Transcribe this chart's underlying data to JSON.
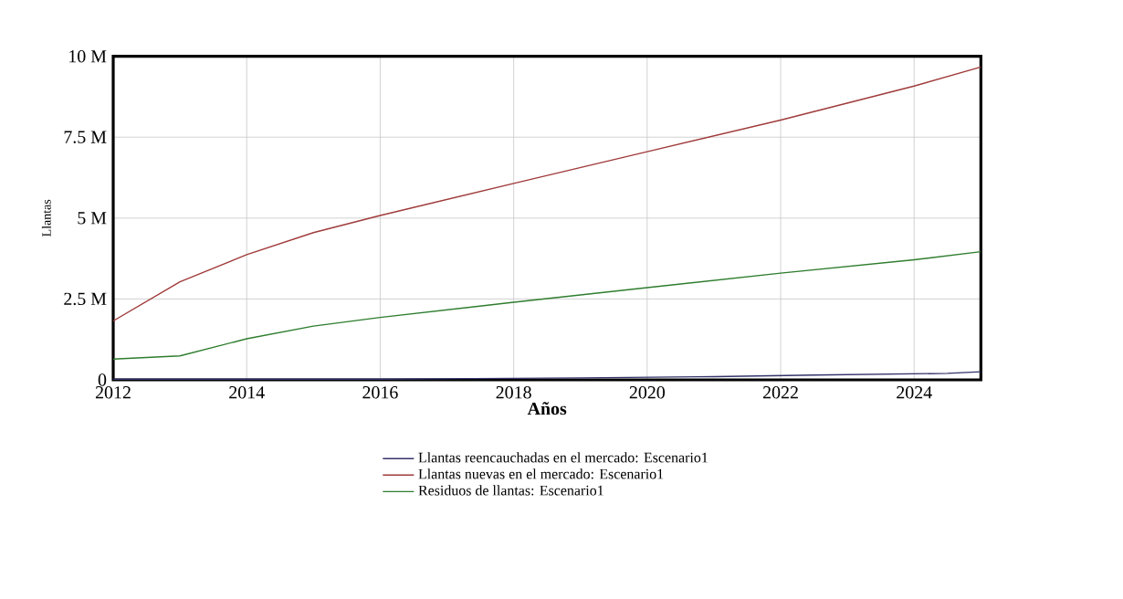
{
  "chart_data": {
    "type": "line",
    "xlabel": "Años",
    "ylabel": "Llantas",
    "xlim": [
      2012,
      2025
    ],
    "xticks": [
      2012,
      2014,
      2016,
      2018,
      2020,
      2022,
      2024
    ],
    "ylim": [
      0,
      10
    ],
    "yticks": [
      {
        "value": 0,
        "label": "0"
      },
      {
        "value": 2.5,
        "label": "2.5 M"
      },
      {
        "value": 5,
        "label": "5 M"
      },
      {
        "value": 7.5,
        "label": "7.5 M"
      },
      {
        "value": 10,
        "label": "10 M"
      }
    ],
    "grid": true,
    "legend": "bottom",
    "line_style": "solid",
    "marker": "none",
    "series": [
      {
        "name": "Llantas reencauchadas en el mercado: Escenario1",
        "color": "#33336b",
        "x": [
          2012,
          2014,
          2016,
          2017.4,
          2019,
          2021,
          2022.5,
          2024.5,
          2025
        ],
        "values": [
          0.02,
          0.02,
          0.02,
          0.04,
          0.06,
          0.1,
          0.15,
          0.2,
          0.25
        ]
      },
      {
        "name": "Llantas nuevas en el mercado: Escenario1",
        "color": "#a03a3a",
        "x": [
          2012,
          2013,
          2014,
          2015,
          2016,
          2018,
          2020,
          2022,
          2024,
          2025
        ],
        "values": [
          1.82,
          3.03,
          3.87,
          4.55,
          5.08,
          6.07,
          7.05,
          8.03,
          9.08,
          9.67
        ]
      },
      {
        "name": "Residuos de llantas: Escenario1",
        "color": "#2e7d2e",
        "x": [
          2012,
          2013,
          2014,
          2015,
          2016,
          2018,
          2020,
          2022,
          2024,
          2025
        ],
        "values": [
          0.64,
          0.74,
          1.27,
          1.66,
          1.93,
          2.4,
          2.85,
          3.3,
          3.71,
          3.96
        ]
      }
    ]
  }
}
